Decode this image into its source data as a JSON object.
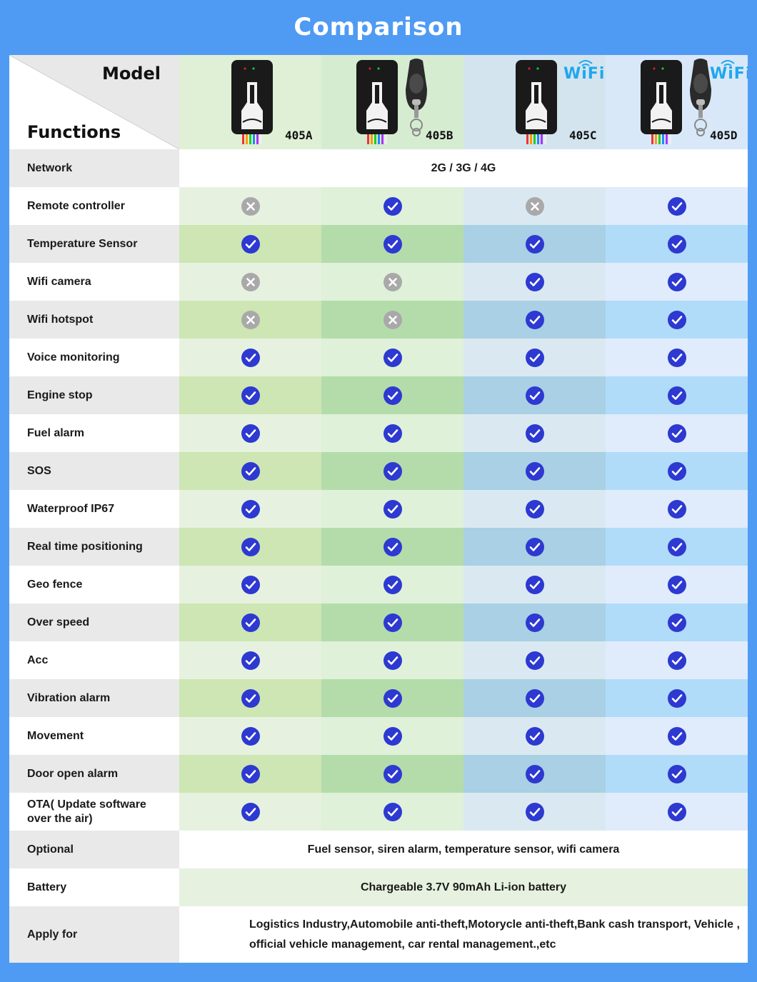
{
  "title": "Comparison",
  "header": {
    "model_label": "Model",
    "functions_label": "Functions",
    "products": [
      {
        "name": "405A",
        "remote": false,
        "wifi": false,
        "wifi_text": ""
      },
      {
        "name": "405B",
        "remote": true,
        "wifi": false,
        "wifi_text": ""
      },
      {
        "name": "405C",
        "remote": false,
        "wifi": true,
        "wifi_text": "WiFi"
      },
      {
        "name": "405D",
        "remote": true,
        "wifi": true,
        "wifi_text": "WiFi"
      }
    ]
  },
  "colors": {
    "check": "#2d39d1",
    "cross": "#a9a9a9",
    "col_light": [
      "#e6f2df",
      "#dff1d9",
      "#dae9f1",
      "#e0ecfb"
    ],
    "col_dark": [
      "#cde6b4",
      "#b3dcaa",
      "#a9d0e4",
      "#b0dcf9"
    ],
    "label_light": "#ffffff",
    "label_dark": "#e9e9e9"
  },
  "rows": [
    {
      "label": "Network",
      "type": "span",
      "text": "2G / 3G / 4G",
      "bg": "white"
    },
    {
      "label": "Remote controller",
      "type": "icons",
      "values": [
        "cross",
        "check",
        "cross",
        "check"
      ]
    },
    {
      "label": "Temperature Sensor",
      "type": "icons",
      "values": [
        "check",
        "check",
        "check",
        "check"
      ]
    },
    {
      "label": "Wifi camera",
      "type": "icons",
      "values": [
        "cross",
        "cross",
        "check",
        "check"
      ]
    },
    {
      "label": "Wifi hotspot",
      "type": "icons",
      "values": [
        "cross",
        "cross",
        "check",
        "check"
      ]
    },
    {
      "label": "Voice monitoring",
      "type": "icons",
      "values": [
        "check",
        "check",
        "check",
        "check"
      ]
    },
    {
      "label": "Engine stop",
      "type": "icons",
      "values": [
        "check",
        "check",
        "check",
        "check"
      ]
    },
    {
      "label": "Fuel alarm",
      "type": "icons",
      "values": [
        "check",
        "check",
        "check",
        "check"
      ]
    },
    {
      "label": "SOS",
      "type": "icons",
      "values": [
        "check",
        "check",
        "check",
        "check"
      ]
    },
    {
      "label": "Waterproof IP67",
      "type": "icons",
      "values": [
        "check",
        "check",
        "check",
        "check"
      ]
    },
    {
      "label": "Real time positioning",
      "type": "icons",
      "values": [
        "check",
        "check",
        "check",
        "check"
      ]
    },
    {
      "label": "Geo fence",
      "type": "icons",
      "values": [
        "check",
        "check",
        "check",
        "check"
      ]
    },
    {
      "label": "Over speed",
      "type": "icons",
      "values": [
        "check",
        "check",
        "check",
        "check"
      ]
    },
    {
      "label": "Acc",
      "type": "icons",
      "values": [
        "check",
        "check",
        "check",
        "check"
      ]
    },
    {
      "label": "Vibration alarm",
      "type": "icons",
      "values": [
        "check",
        "check",
        "check",
        "check"
      ]
    },
    {
      "label": "Movement",
      "type": "icons",
      "values": [
        "check",
        "check",
        "check",
        "check"
      ]
    },
    {
      "label": "Door open alarm",
      "type": "icons",
      "values": [
        "check",
        "check",
        "check",
        "check"
      ]
    },
    {
      "label": "OTA( Update software over the air)",
      "type": "icons",
      "values": [
        "check",
        "check",
        "check",
        "check"
      ]
    },
    {
      "label": "Optional",
      "type": "span",
      "text": "Fuel sensor, siren alarm, temperature sensor, wifi camera",
      "bg": "white"
    },
    {
      "label": "Battery",
      "type": "span",
      "text": "Chargeable 3.7V 90mAh Li-ion battery",
      "bg": "green"
    },
    {
      "label": "Apply for",
      "type": "span",
      "text": "Logistics Industry,Automobile anti-theft,Motorycle anti-theft,Bank cash transport, Vehicle , official vehicle management, car rental management.,etc",
      "bg": "white"
    }
  ]
}
